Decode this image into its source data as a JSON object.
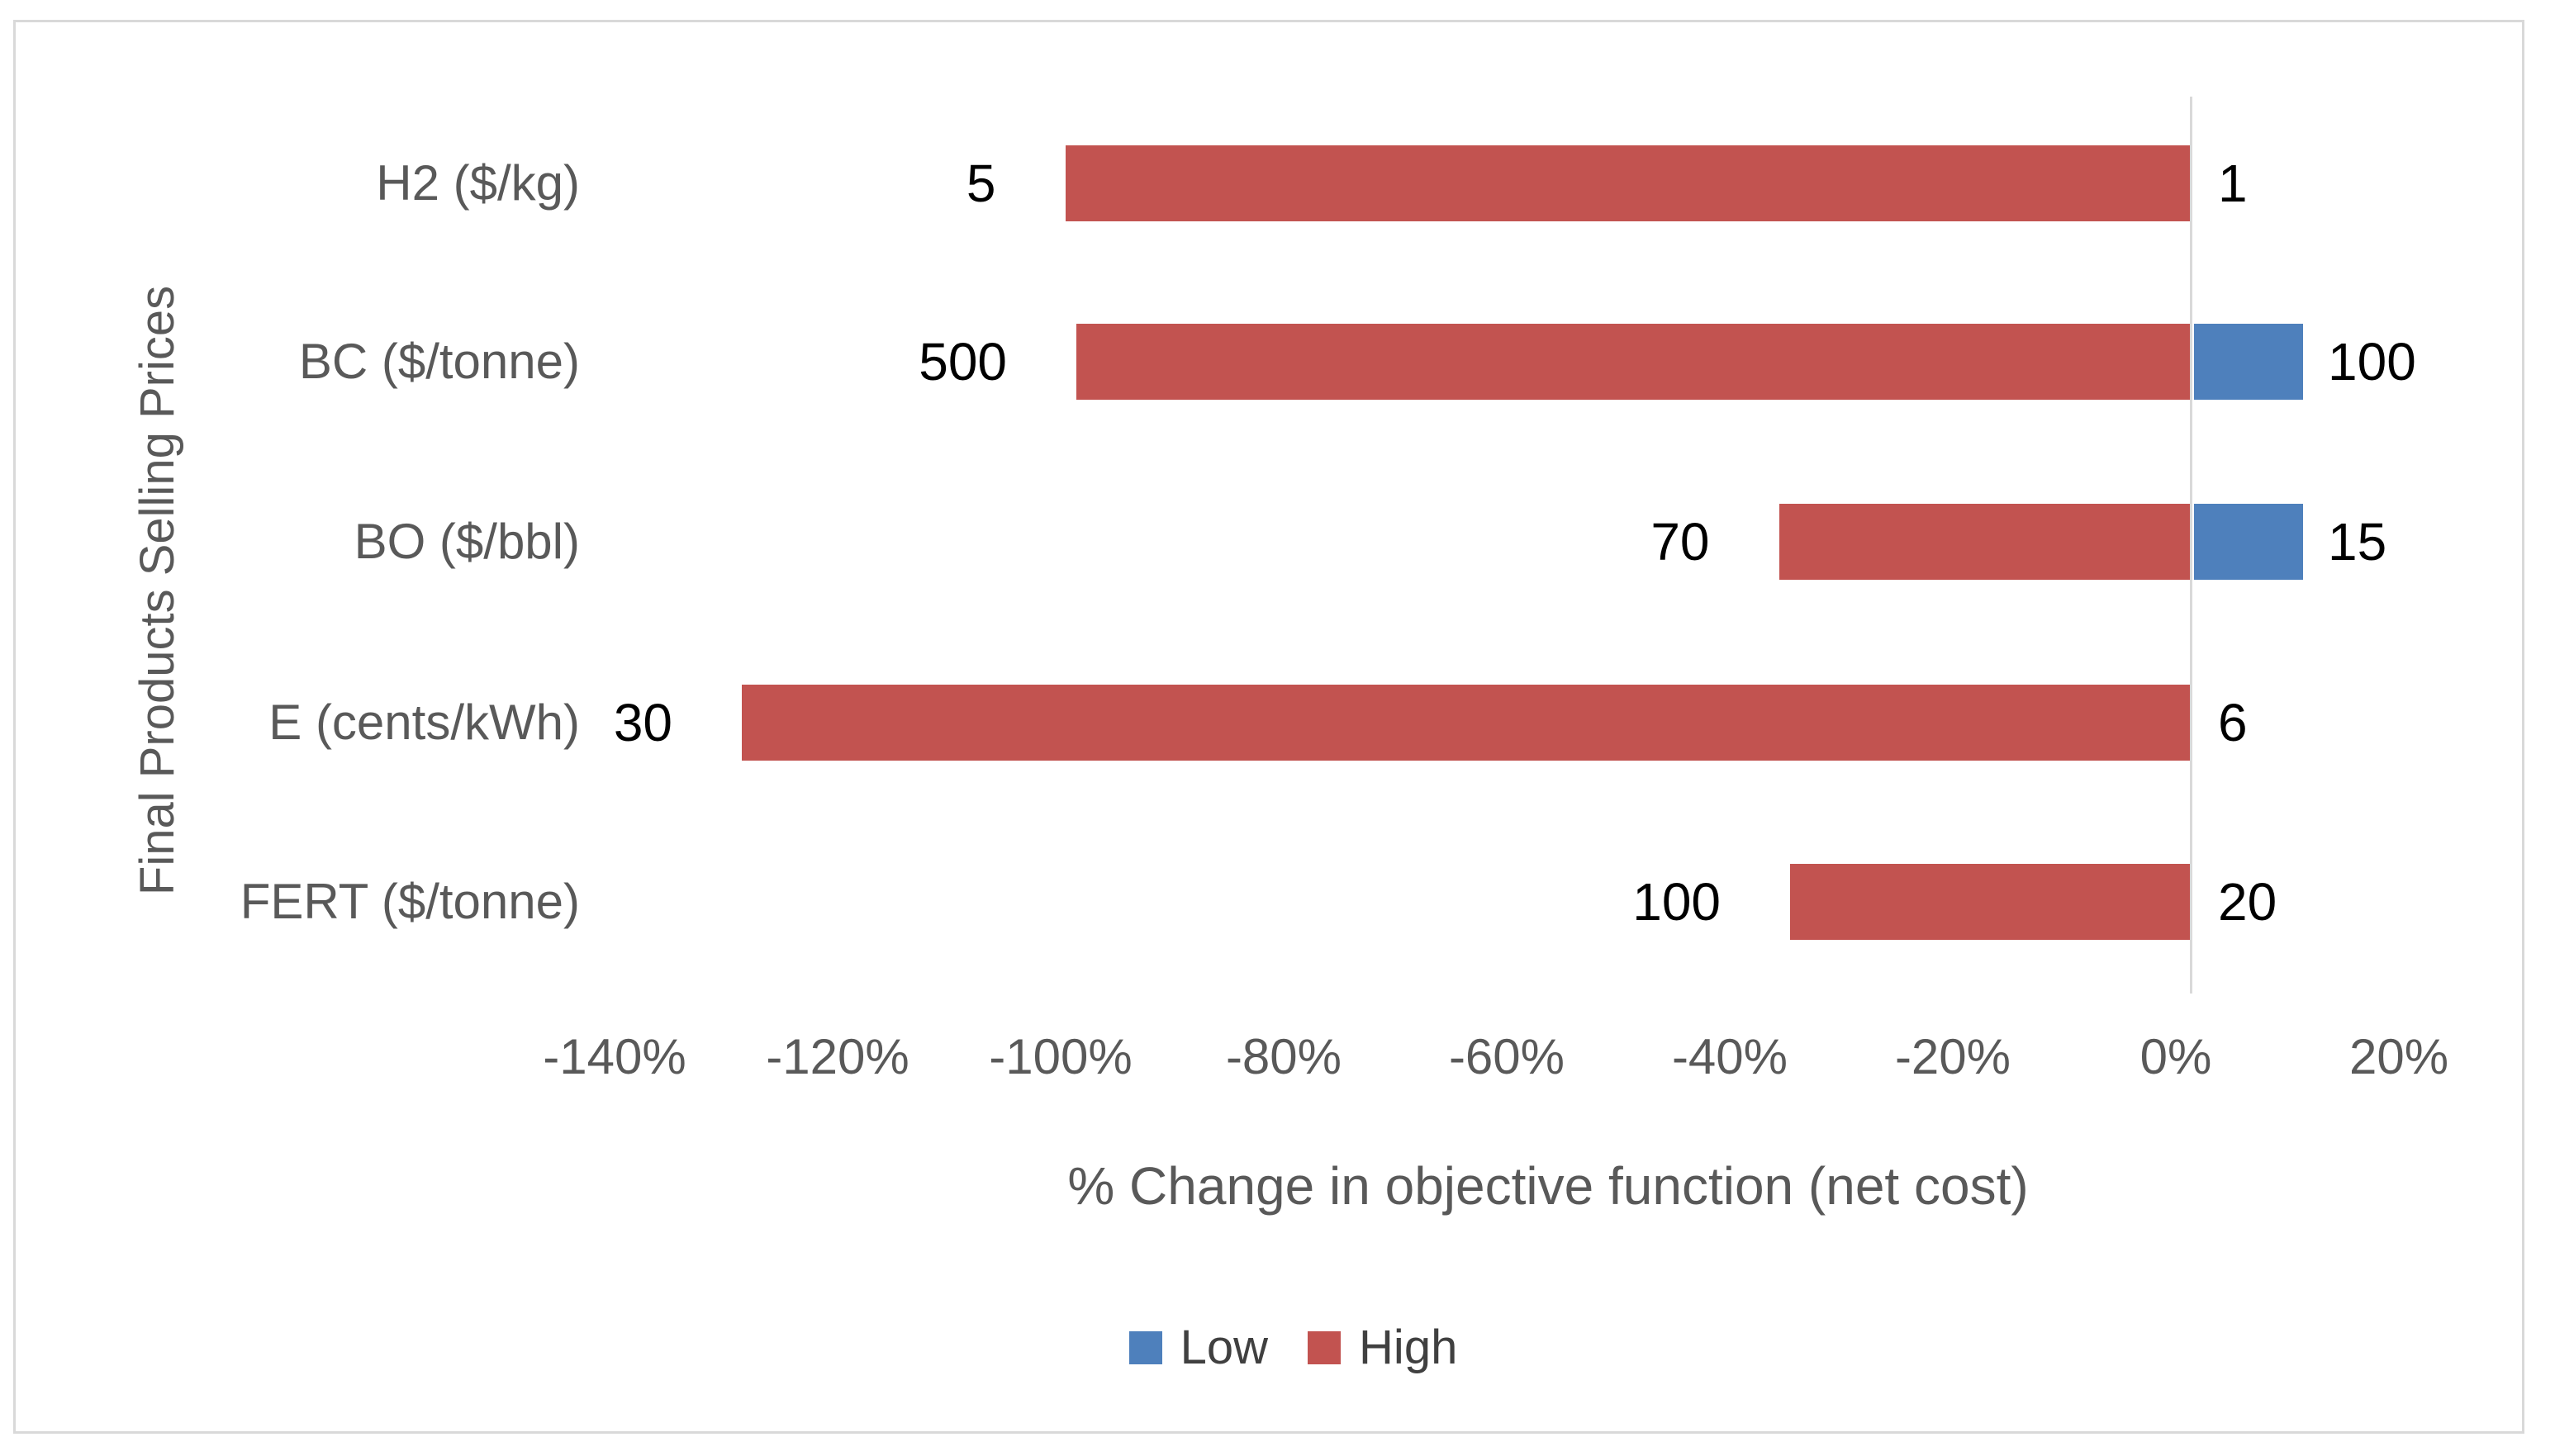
{
  "chart_data": {
    "type": "bar",
    "orientation": "horizontal",
    "subtype": "tornado-sensitivity",
    "title": "",
    "xlabel": "% Change in objective function (net cost)",
    "ylabel": "Final Products Selling Prices",
    "categories": [
      "H2 ($/kg)",
      "BC ($/tonne)",
      "BO ($/bbl)",
      "E (cents/kWh)",
      "FERT ($/tonne)"
    ],
    "series": [
      {
        "name": "Low",
        "color": "#4E80BC",
        "values_pct": [
          0,
          10,
          10,
          0,
          0
        ],
        "point_labels": [
          "1",
          "100",
          "15",
          "6",
          "20"
        ]
      },
      {
        "name": "High",
        "color": "#C25350",
        "values_pct": [
          -101,
          -100,
          -37,
          -130,
          -36
        ],
        "point_labels": [
          "5",
          "500",
          "70",
          "30",
          "100"
        ]
      }
    ],
    "x_ticks": [
      "-140%",
      "-120%",
      "-100%",
      "-80%",
      "-60%",
      "-40%",
      "-20%",
      "0%",
      "20%"
    ],
    "xlim": [
      -150,
      25
    ],
    "grid": false,
    "zero_line": true,
    "legend_position": "bottom",
    "colors": {
      "axis_text": "#595959",
      "value_label": "#000000",
      "border": "#D9D9D9",
      "zero_line": "#D9D9D9"
    }
  }
}
